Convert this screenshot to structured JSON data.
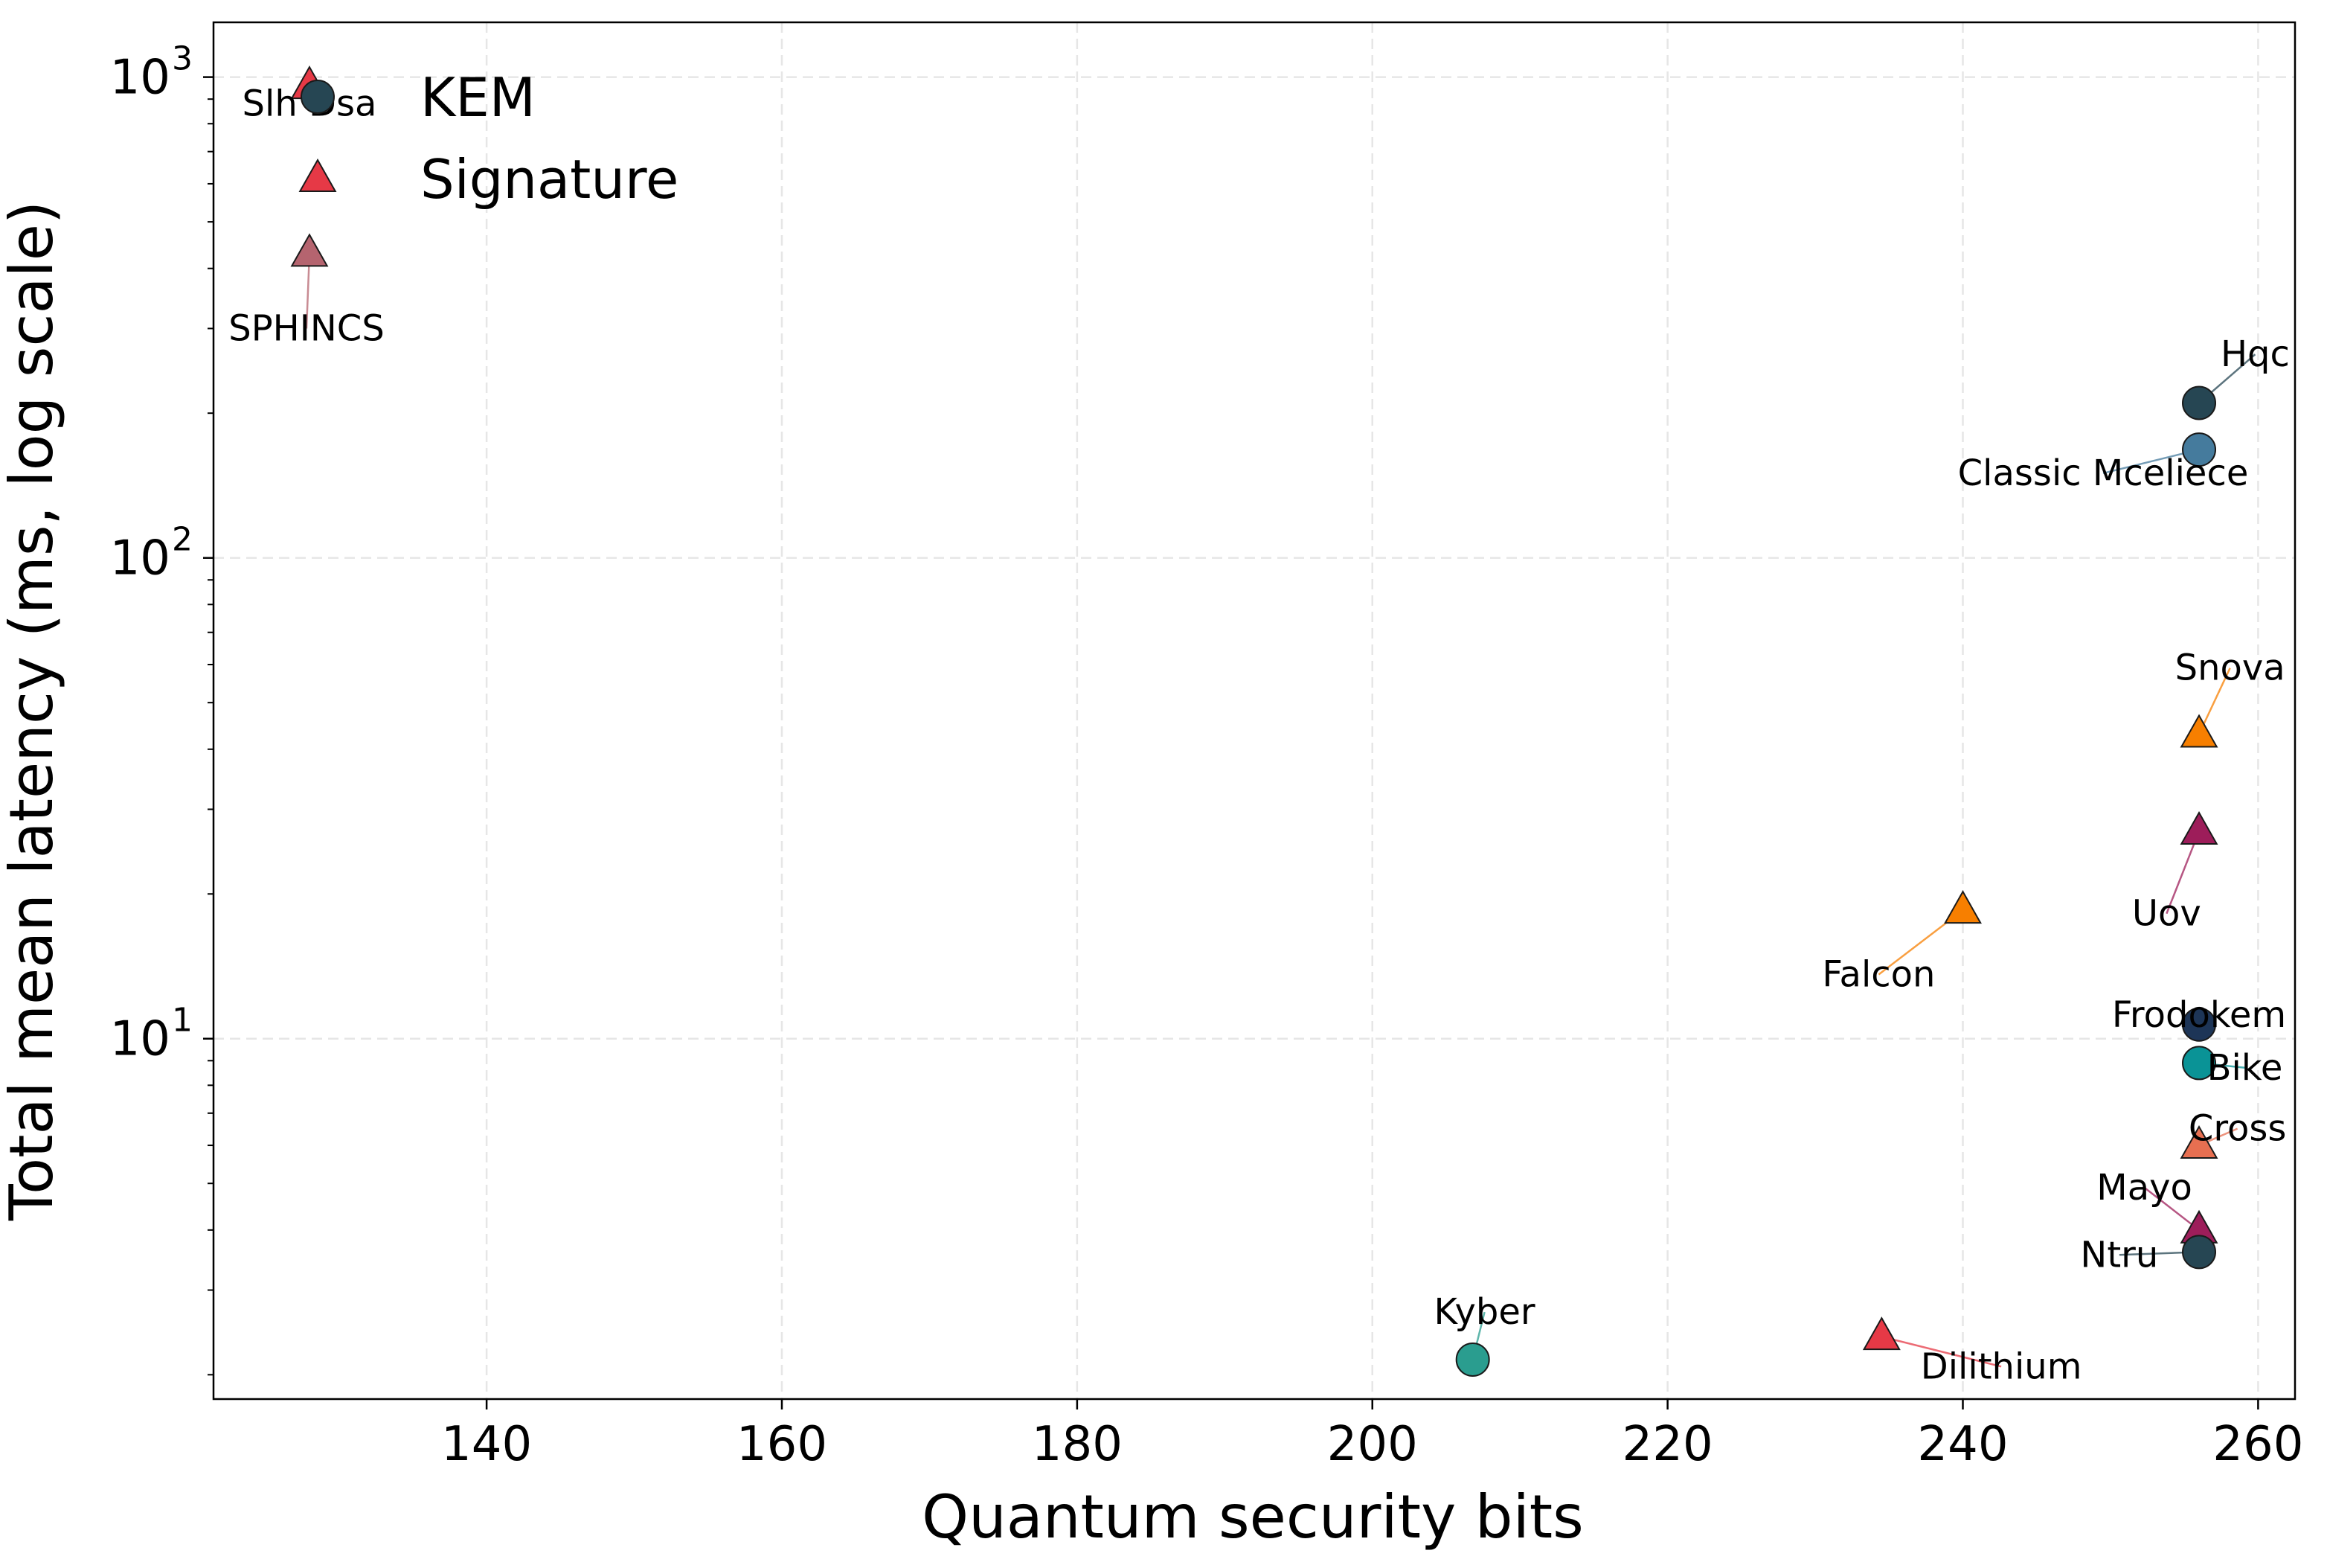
{
  "chart_data": {
    "type": "scatter",
    "xlabel": "Quantum security bits",
    "ylabel": "Total mean latency (ms, log scale)",
    "xlim": [
      121.5,
      262.5
    ],
    "ylim": [
      1.78,
      1300
    ],
    "y_scale": "log",
    "x_ticks": [
      140,
      160,
      180,
      200,
      220,
      240,
      260
    ],
    "y_ticks": [
      {
        "value": 10,
        "base": "10",
        "exp": "1"
      },
      {
        "value": 100,
        "base": "10",
        "exp": "2"
      },
      {
        "value": 1000,
        "base": "10",
        "exp": "3"
      }
    ],
    "grid": true,
    "legend_position": "top-left",
    "series": [
      {
        "name": "KEM",
        "marker": "circle",
        "legend_color": "#264653"
      },
      {
        "name": "Signature",
        "marker": "triangle",
        "legend_color": "#e63946"
      }
    ],
    "points": [
      {
        "label": "Slh Dsa",
        "x": 128,
        "y": 960,
        "kind": "Signature",
        "color": "#e63946",
        "label_x": 128,
        "label_y": 880
      },
      {
        "label": "SPHINCS",
        "x": 128,
        "y": 430,
        "kind": "Signature",
        "color": "#b5646f",
        "label_x": 127.8,
        "label_y": 300
      },
      {
        "label": "Hqc",
        "x": 256,
        "y": 210,
        "kind": "KEM",
        "color": "#264653",
        "label_x": 259.8,
        "label_y": 265
      },
      {
        "label": "Classic Mceliece",
        "x": 256,
        "y": 168,
        "kind": "KEM",
        "color": "#457b9d",
        "label_x": 249.5,
        "label_y": 150
      },
      {
        "label": "Snova",
        "x": 256,
        "y": 43,
        "kind": "Signature",
        "color": "#f77f00",
        "label_x": 258.1,
        "label_y": 59
      },
      {
        "label": "Uov",
        "x": 256,
        "y": 27,
        "kind": "Signature",
        "color": "#9d1d5a",
        "label_x": 253.8,
        "label_y": 18.2
      },
      {
        "label": "Falcon",
        "x": 240,
        "y": 18.5,
        "kind": "Signature",
        "color": "#f77f00",
        "label_x": 234.3,
        "label_y": 13.6
      },
      {
        "label": "Frodokem",
        "x": 256,
        "y": 10.7,
        "kind": "KEM",
        "color": "#1d3557",
        "label_x": 256,
        "label_y": 11.2
      },
      {
        "label": "Bike",
        "x": 256,
        "y": 8.9,
        "kind": "KEM",
        "color": "#0a9396",
        "label_x": 259.1,
        "label_y": 8.7
      },
      {
        "label": "Cross",
        "x": 256,
        "y": 6.0,
        "kind": "Signature",
        "color": "#e76f51",
        "label_x": 258.6,
        "label_y": 6.5
      },
      {
        "label": "Mayo",
        "x": 256,
        "y": 4.0,
        "kind": "Signature",
        "color": "#9d1d5a",
        "label_x": 252.3,
        "label_y": 4.9
      },
      {
        "label": "Ntru",
        "x": 256,
        "y": 3.6,
        "kind": "KEM",
        "color": "#264653",
        "label_x": 250.6,
        "label_y": 3.55
      },
      {
        "label": "Kyber",
        "x": 206.8,
        "y": 2.15,
        "kind": "KEM",
        "color": "#2a9d8f",
        "label_x": 207.6,
        "label_y": 2.7
      },
      {
        "label": "Dilithium",
        "x": 234.5,
        "y": 2.4,
        "kind": "Signature",
        "color": "#e63946",
        "label_x": 242.6,
        "label_y": 2.08
      }
    ]
  }
}
